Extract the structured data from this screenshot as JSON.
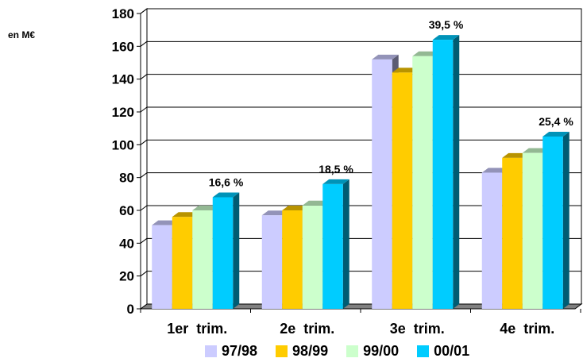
{
  "unit_label": "en M€",
  "chart_data": {
    "type": "bar",
    "categories": [
      "1er  trim.",
      "2e  trim.",
      "3e  trim.",
      "4e  trim."
    ],
    "series": [
      {
        "name": "97/98",
        "color": "#ccccff",
        "values": [
          51,
          57,
          152,
          83
        ]
      },
      {
        "name": "98/99",
        "color": "#ffcc00",
        "values": [
          56,
          60,
          144,
          92
        ]
      },
      {
        "name": "99/00",
        "color": "#ccffcc",
        "values": [
          60,
          63,
          154,
          95
        ]
      },
      {
        "name": "00/01",
        "color": "#00ccff",
        "values": [
          68,
          76,
          164,
          105
        ]
      }
    ],
    "annotations": [
      "16,6 %",
      "18,5 %",
      "39,5 %",
      "25,4 %"
    ],
    "ylim": [
      0,
      180
    ],
    "yticks": [
      0,
      20,
      40,
      60,
      80,
      100,
      120,
      140,
      160,
      180
    ],
    "grid": true,
    "legend": "bottom",
    "title": "",
    "xlabel": "",
    "ylabel": ""
  }
}
